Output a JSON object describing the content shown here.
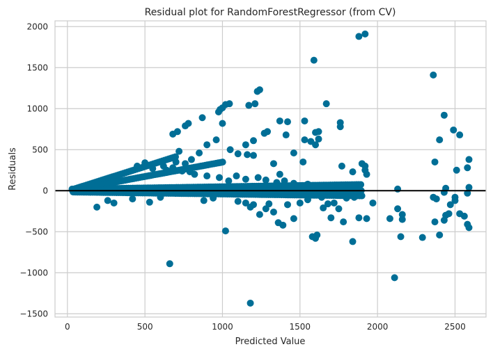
{
  "chart_data": {
    "type": "scatter",
    "title": "Residual plot for RandomForestRegressor (from CV)",
    "xlabel": "Predicted Value",
    "ylabel": "Residuals",
    "xlim": [
      -80,
      2700
    ],
    "ylim": [
      -1540,
      2070
    ],
    "xticks": [
      0,
      500,
      1000,
      1500,
      2000,
      2500
    ],
    "yticks": [
      -1500,
      -1000,
      -500,
      0,
      500,
      1000,
      1500,
      2000
    ],
    "xtick_labels": [
      "0",
      "500",
      "1000",
      "1500",
      "2000",
      "2500"
    ],
    "ytick_labels": [
      "−1500",
      "−1000",
      "−500",
      "0",
      "500",
      "1000",
      "1500",
      "2000"
    ],
    "grid": true,
    "reference_line": 0,
    "colors": {
      "points": "#006e96",
      "reference_line": "#000000",
      "grid": "#cccccc",
      "axes": "#cccccc",
      "background": "#ffffff"
    },
    "series": [
      {
        "points": [
          [
            1880,
            1880
          ],
          [
            1920,
            1910
          ],
          [
            1590,
            1590
          ],
          [
            2360,
            1410
          ],
          [
            1240,
            1230
          ],
          [
            1225,
            1210
          ],
          [
            1210,
            1060
          ],
          [
            1020,
            1050
          ],
          [
            1045,
            1060
          ],
          [
            1000,
            1010
          ],
          [
            985,
            990
          ],
          [
            975,
            960
          ],
          [
            1670,
            1060
          ],
          [
            1170,
            1040
          ],
          [
            2430,
            920
          ],
          [
            1530,
            850
          ],
          [
            870,
            890
          ],
          [
            780,
            820
          ],
          [
            760,
            790
          ],
          [
            710,
            720
          ],
          [
            680,
            690
          ],
          [
            1370,
            850
          ],
          [
            1420,
            840
          ],
          [
            1760,
            830
          ],
          [
            1760,
            780
          ],
          [
            1620,
            720
          ],
          [
            1600,
            710
          ],
          [
            1270,
            700
          ],
          [
            1290,
            720
          ],
          [
            2490,
            740
          ],
          [
            2530,
            680
          ],
          [
            1410,
            680
          ],
          [
            1620,
            630
          ],
          [
            2400,
            620
          ],
          [
            1530,
            620
          ],
          [
            1200,
            610
          ],
          [
            1570,
            600
          ],
          [
            1150,
            560
          ],
          [
            1160,
            440
          ],
          [
            1000,
            820
          ],
          [
            960,
            620
          ],
          [
            900,
            560
          ],
          [
            850,
            460
          ],
          [
            800,
            380
          ],
          [
            760,
            330
          ],
          [
            700,
            350
          ],
          [
            720,
            480
          ],
          [
            1050,
            500
          ],
          [
            1100,
            450
          ],
          [
            1200,
            430
          ],
          [
            1330,
            330
          ],
          [
            1460,
            460
          ],
          [
            1520,
            350
          ],
          [
            1600,
            560
          ],
          [
            1770,
            300
          ],
          [
            1840,
            230
          ],
          [
            1920,
            300
          ],
          [
            1920,
            250
          ],
          [
            1930,
            200
          ],
          [
            1900,
            330
          ],
          [
            2370,
            350
          ],
          [
            2510,
            250
          ],
          [
            2590,
            380
          ],
          [
            2580,
            280
          ],
          [
            2590,
            40
          ],
          [
            2580,
            -30
          ],
          [
            1370,
            200
          ],
          [
            1280,
            -220
          ],
          [
            1180,
            -200
          ],
          [
            1240,
            -290
          ],
          [
            1330,
            -260
          ],
          [
            1360,
            -390
          ],
          [
            1390,
            -420
          ],
          [
            1460,
            -340
          ],
          [
            1580,
            -560
          ],
          [
            1610,
            -540
          ],
          [
            1600,
            -580
          ],
          [
            1650,
            -210
          ],
          [
            1700,
            -330
          ],
          [
            1750,
            -220
          ],
          [
            1780,
            -380
          ],
          [
            1840,
            -620
          ],
          [
            1880,
            -330
          ],
          [
            1930,
            -340
          ],
          [
            2080,
            -340
          ],
          [
            1970,
            -150
          ],
          [
            2110,
            -1060
          ],
          [
            2130,
            -220
          ],
          [
            2150,
            -560
          ],
          [
            2160,
            -290
          ],
          [
            2160,
            -350
          ],
          [
            2290,
            -570
          ],
          [
            2360,
            -80
          ],
          [
            2380,
            -100
          ],
          [
            2370,
            -380
          ],
          [
            2400,
            -540
          ],
          [
            2440,
            -300
          ],
          [
            2430,
            -360
          ],
          [
            2460,
            -280
          ],
          [
            2470,
            -170
          ],
          [
            2500,
            -80
          ],
          [
            2500,
            -120
          ],
          [
            2530,
            -280
          ],
          [
            2560,
            -310
          ],
          [
            2580,
            -410
          ],
          [
            2590,
            -450
          ],
          [
            2440,
            30
          ],
          [
            2430,
            -20
          ],
          [
            2130,
            20
          ],
          [
            1020,
            -490
          ],
          [
            660,
            -890
          ],
          [
            1180,
            -1370
          ],
          [
            190,
            -200
          ],
          [
            260,
            -120
          ],
          [
            300,
            -150
          ],
          [
            420,
            -100
          ],
          [
            530,
            -140
          ],
          [
            600,
            -80
          ],
          [
            880,
            -120
          ],
          [
            940,
            -90
          ],
          [
            1100,
            -130
          ],
          [
            1150,
            -150
          ],
          [
            1200,
            -170
          ],
          [
            1300,
            -160
          ],
          [
            1420,
            -170
          ],
          [
            1500,
            -150
          ],
          [
            1550,
            -110
          ],
          [
            1640,
            -80
          ],
          [
            1680,
            -160
          ],
          [
            1720,
            -150
          ],
          [
            1800,
            -90
          ],
          [
            1850,
            -80
          ],
          [
            450,
            300
          ],
          [
            500,
            340
          ],
          [
            550,
            270
          ],
          [
            620,
            300
          ],
          [
            640,
            250
          ],
          [
            680,
            280
          ],
          [
            740,
            240
          ],
          [
            790,
            230
          ],
          [
            820,
            200
          ],
          [
            900,
            180
          ],
          [
            980,
            160
          ],
          [
            1040,
            120
          ],
          [
            1090,
            180
          ],
          [
            1150,
            140
          ],
          [
            1230,
            160
          ],
          [
            1280,
            130
          ],
          [
            1350,
            100
          ],
          [
            1400,
            120
          ],
          [
            1460,
            90
          ],
          [
            1550,
            80
          ],
          [
            1620,
            60
          ],
          [
            1700,
            50
          ],
          [
            1780,
            40
          ],
          [
            1850,
            30
          ]
        ]
      }
    ]
  }
}
